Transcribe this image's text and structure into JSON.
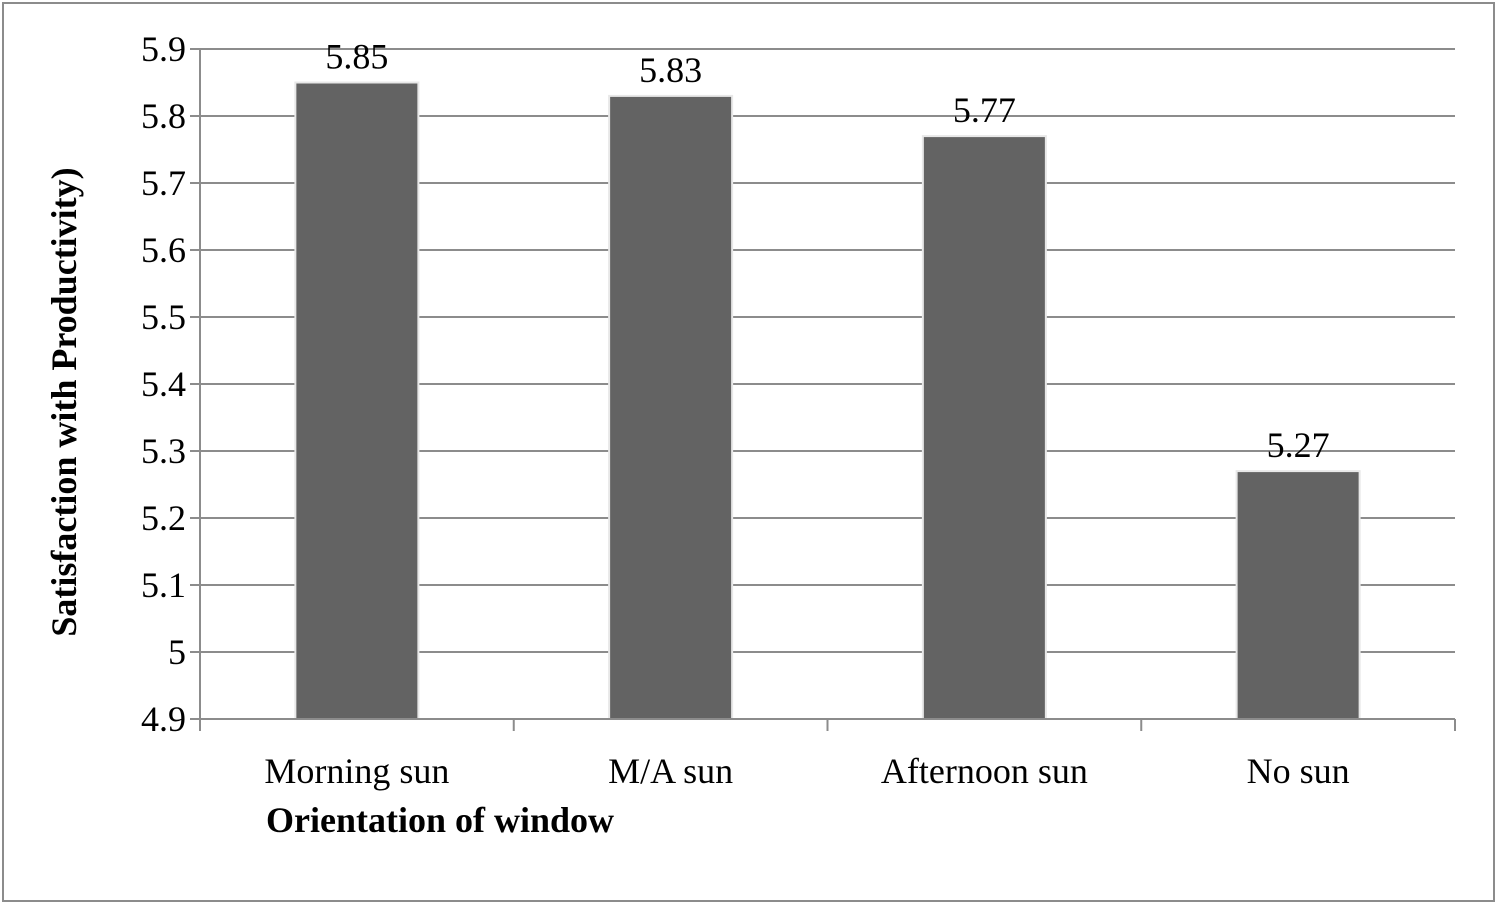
{
  "chart_data": {
    "type": "bar",
    "categories": [
      "Morning sun",
      "M/A sun",
      "Afternoon sun",
      "No sun"
    ],
    "values": [
      5.85,
      5.83,
      5.77,
      5.27
    ],
    "data_labels": [
      "5.85",
      "5.83",
      "5.77",
      "5.27"
    ],
    "y_ticks": [
      "5.9",
      "5.8",
      "5.7",
      "5.6",
      "5.5",
      "5.4",
      "5.3",
      "5.2",
      "5.1",
      "5",
      "4.9"
    ],
    "xlabel": "Orientation of window",
    "ylabel": "Satisfaction with  Productivity)",
    "ylim": [
      4.9,
      5.9
    ],
    "grid": true,
    "legend": "none",
    "colors": {
      "bar": "#636363",
      "grid": "#8c8c8c",
      "axis": "#8c8c8c"
    }
  }
}
